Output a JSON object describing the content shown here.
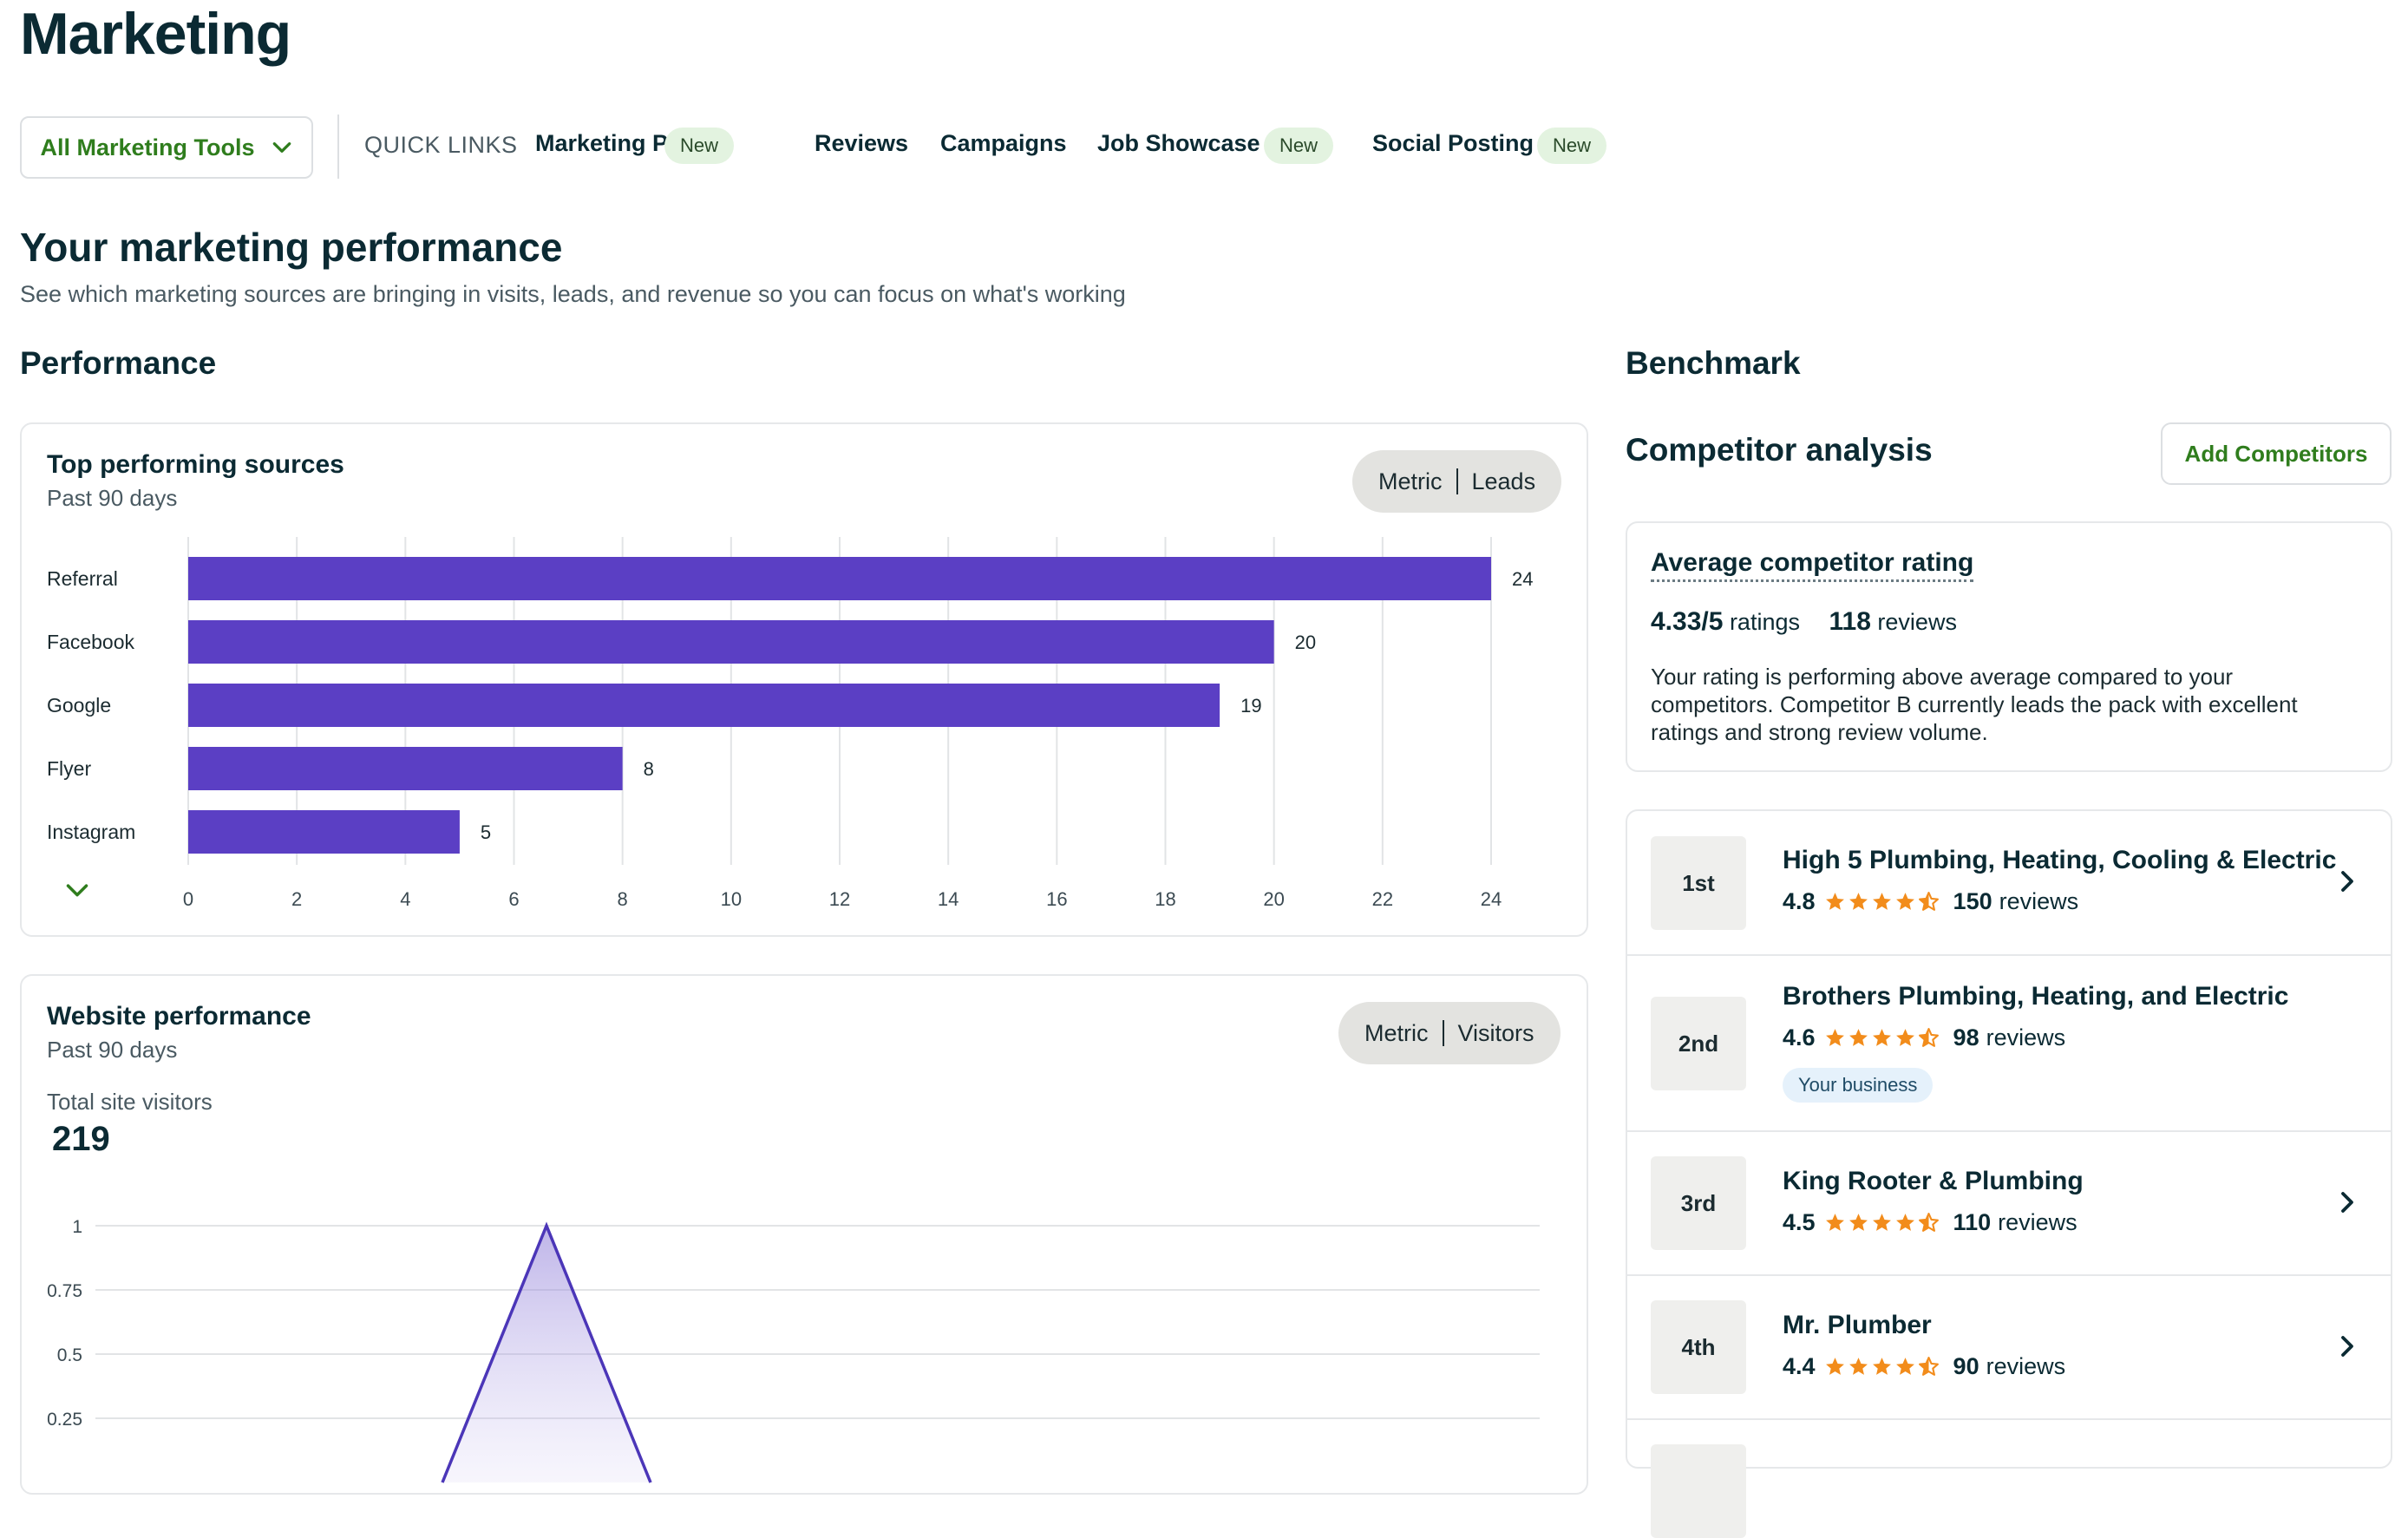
{
  "header": {
    "title": "Marketing"
  },
  "tools": {
    "label": "All Marketing Tools"
  },
  "quick_links": {
    "label": "QUICK LINKS",
    "items": [
      {
        "label": "Marketing Plan",
        "badge": "New"
      },
      {
        "label": "Reviews",
        "badge": ""
      },
      {
        "label": "Campaigns",
        "badge": ""
      },
      {
        "label": "Job Showcase",
        "badge": "New"
      },
      {
        "label": "Social Posting",
        "badge": "New"
      }
    ]
  },
  "performance_intro": {
    "heading": "Your marketing performance",
    "subtitle": "See which marketing sources are bringing in visits, leads, and revenue so you can focus on what's working"
  },
  "performance": {
    "section_title": "Performance",
    "sources_card": {
      "title": "Top performing sources",
      "period": "Past 90 days",
      "toggle": {
        "left": "Metric",
        "right": "Leads"
      }
    },
    "website_card": {
      "title": "Website performance",
      "period": "Past 90 days",
      "toggle": {
        "left": "Metric",
        "right": "Visitors"
      },
      "total_label": "Total site visitors",
      "total_value": "219"
    }
  },
  "benchmark": {
    "section_title": "Benchmark",
    "analysis_title": "Competitor analysis",
    "add_button": "Add Competitors",
    "avg": {
      "title": "Average competitor rating",
      "rating": "4.33/5",
      "rating_label": "ratings",
      "reviews": "118",
      "reviews_label": "reviews",
      "description": "Your rating is performing above average compared to your competitors. Competitor B currently leads the pack with excellent ratings and strong review volume."
    },
    "competitors": [
      {
        "rank": "1st",
        "name": "High 5 Plumbing, Heating, Cooling & Electric",
        "score": "4.8",
        "stars": 4.5,
        "reviews": "150",
        "reviews_label": "reviews",
        "badge": ""
      },
      {
        "rank": "2nd",
        "name": "Brothers Plumbing, Heating, and Electric",
        "score": "4.6",
        "stars": 4.5,
        "reviews": "98",
        "reviews_label": "reviews",
        "badge": "Your business"
      },
      {
        "rank": "3rd",
        "name": "King Rooter & Plumbing",
        "score": "4.5",
        "stars": 4.5,
        "reviews": "110",
        "reviews_label": "reviews",
        "badge": ""
      },
      {
        "rank": "4th",
        "name": "Mr. Plumber",
        "score": "4.4",
        "stars": 4.5,
        "reviews": "90",
        "reviews_label": "reviews",
        "badge": ""
      }
    ]
  },
  "colors": {
    "bar": "#5b3fc4",
    "accent_green": "#2f7d1d",
    "star": "#f28c1b",
    "text_dark": "#0b2a33"
  },
  "chart_data": [
    {
      "type": "bar",
      "orientation": "horizontal",
      "categories": [
        "Referral",
        "Facebook",
        "Google",
        "Flyer",
        "Instagram"
      ],
      "values": [
        24,
        20,
        19,
        8,
        5
      ],
      "xlim": [
        0,
        24
      ],
      "xticks": [
        "0",
        "2",
        "4",
        "6",
        "8",
        "10",
        "12",
        "14",
        "16",
        "18",
        "20",
        "22",
        "24"
      ],
      "grid": true,
      "data_labels": true
    },
    {
      "type": "area",
      "yticks": [
        "1",
        "0.75",
        "0.5",
        "0.25"
      ],
      "ylim": [
        0,
        1
      ],
      "peak_value": 1,
      "grid": true
    }
  ]
}
